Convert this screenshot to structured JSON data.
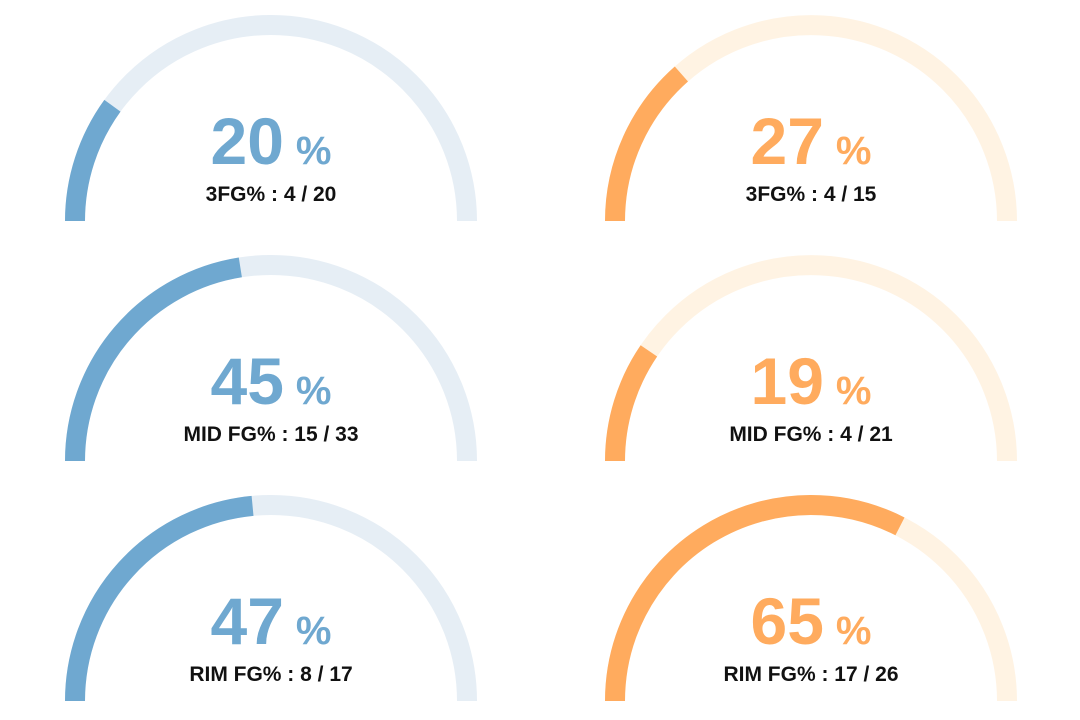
{
  "colors": {
    "blue": "#6fa8d0",
    "blue_track": "#e6eef5",
    "orange": "#ffab5e",
    "orange_track": "#fff3e3",
    "label_text": "#111111"
  },
  "chart_data": [
    {
      "type": "gauge",
      "team": "left",
      "color": "blue",
      "percent_text": "20",
      "percent_sign": "%",
      "label": "3FG% : 4 / 20",
      "made": 4,
      "attempted": 20,
      "value": 20,
      "range": [
        0,
        100
      ]
    },
    {
      "type": "gauge",
      "team": "right",
      "color": "orange",
      "percent_text": "27",
      "percent_sign": "%",
      "label": "3FG% : 4 / 15",
      "made": 4,
      "attempted": 15,
      "value": 27,
      "range": [
        0,
        100
      ]
    },
    {
      "type": "gauge",
      "team": "left",
      "color": "blue",
      "percent_text": "45",
      "percent_sign": "%",
      "label": "MID FG% : 15 / 33",
      "made": 15,
      "attempted": 33,
      "value": 45,
      "range": [
        0,
        100
      ]
    },
    {
      "type": "gauge",
      "team": "right",
      "color": "orange",
      "percent_text": "19",
      "percent_sign": "%",
      "label": "MID FG% : 4 / 21",
      "made": 4,
      "attempted": 21,
      "value": 19,
      "range": [
        0,
        100
      ]
    },
    {
      "type": "gauge",
      "team": "left",
      "color": "blue",
      "percent_text": "47",
      "percent_sign": "%",
      "label": "RIM FG% : 8 / 17",
      "made": 8,
      "attempted": 17,
      "value": 47,
      "range": [
        0,
        100
      ]
    },
    {
      "type": "gauge",
      "team": "right",
      "color": "orange",
      "percent_text": "65",
      "percent_sign": "%",
      "label": "RIM FG% : 17 / 26",
      "made": 17,
      "attempted": 26,
      "value": 65,
      "range": [
        0,
        100
      ]
    }
  ]
}
